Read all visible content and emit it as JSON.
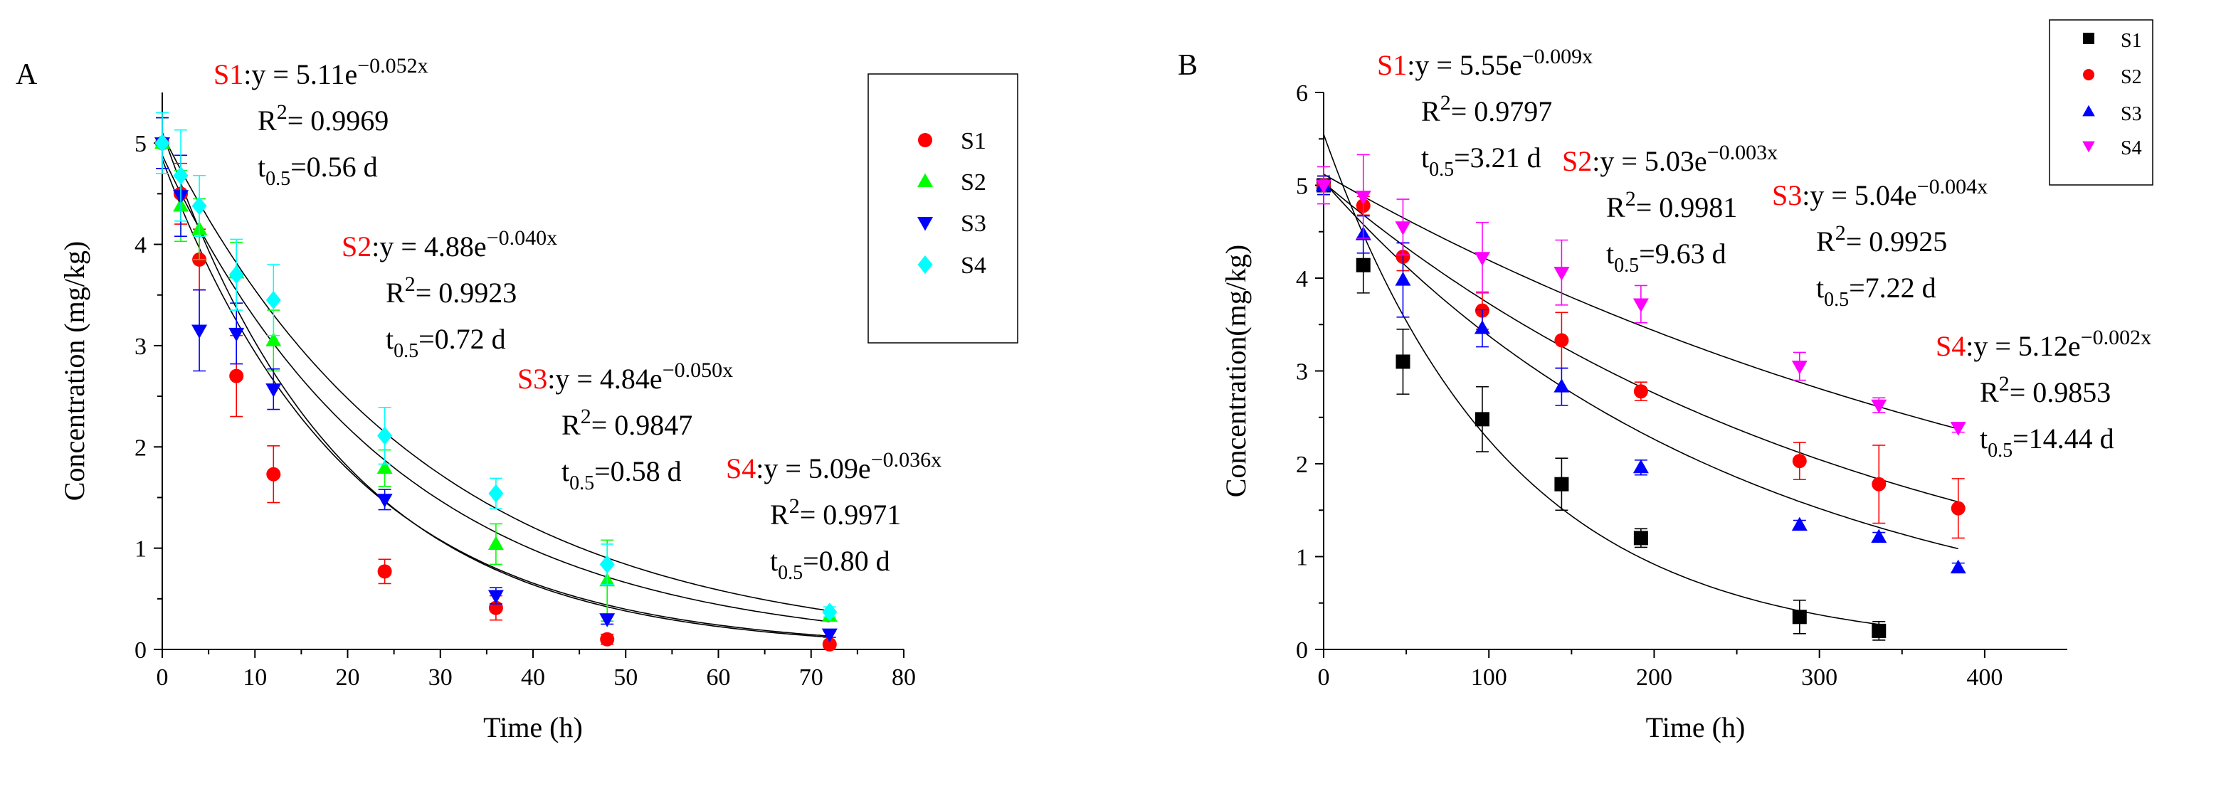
{
  "chart_data": [
    {
      "panel": "A",
      "type": "scatter",
      "xlabel": "Time (h)",
      "ylabel": "Concentration (mg/kg)",
      "xlim": [
        0,
        80
      ],
      "ylim": [
        0,
        5.5
      ],
      "xticks": [
        "0",
        "10",
        "20",
        "30",
        "40",
        "50",
        "60",
        "70",
        "80"
      ],
      "yticks": [
        "0",
        "1",
        "2",
        "3",
        "4",
        "5"
      ],
      "xtick_values": [
        0,
        10,
        20,
        30,
        40,
        50,
        60,
        70,
        80
      ],
      "ytick_values": [
        0,
        1,
        2,
        3,
        4,
        5
      ],
      "legend_position": "top-right",
      "series": [
        {
          "name": "S1",
          "color": "#ff0000",
          "marker": "circle",
          "x": [
            0,
            2,
            4,
            8,
            12,
            24,
            36,
            48,
            72
          ],
          "y": [
            5.0,
            4.5,
            3.85,
            2.7,
            1.73,
            0.77,
            0.41,
            0.1,
            0.05
          ],
          "err": [
            0.25,
            0.3,
            0.3,
            0.4,
            0.28,
            0.12,
            0.12,
            0.05,
            0.02
          ],
          "fit": {
            "a": 5.11,
            "k": 0.052
          },
          "equation": {
            "label": "S1",
            "prefix": ":y = 5.11e",
            "exponent": "−0.052x",
            "r2_prefix": "R",
            "r2_value": "= 0.9969",
            "t_prefix": "t",
            "t_sub": "0.5",
            "t_value": "=0.56 d"
          }
        },
        {
          "name": "S2",
          "color": "#00ff00",
          "marker": "triangle-up",
          "x": [
            0,
            2,
            4,
            8,
            12,
            24,
            36,
            48,
            72
          ],
          "y": [
            5.0,
            4.38,
            4.15,
            3.72,
            3.05,
            1.79,
            1.04,
            0.68,
            0.33
          ],
          "err": [
            0.25,
            0.35,
            0.3,
            0.3,
            0.3,
            0.18,
            0.2,
            0.4,
            0.05
          ],
          "fit": {
            "a": 4.88,
            "k": 0.04
          },
          "equation": {
            "label": "S2",
            "prefix": ":y = 4.88e",
            "exponent": "−0.040x",
            "r2_prefix": "R",
            "r2_value": "= 0.9923",
            "t_prefix": "t",
            "t_sub": "0.5",
            "t_value": "=0.72 d"
          }
        },
        {
          "name": "S3",
          "color": "#0000ff",
          "marker": "triangle-down",
          "x": [
            0,
            2,
            4,
            8,
            12,
            24,
            36,
            48,
            72
          ],
          "y": [
            5.0,
            4.48,
            3.15,
            3.12,
            2.57,
            1.48,
            0.53,
            0.3,
            0.15
          ],
          "err": [
            0.25,
            0.4,
            0.4,
            0.3,
            0.2,
            0.1,
            0.08,
            0.05,
            0.03
          ],
          "fit": {
            "a": 4.84,
            "k": 0.05
          },
          "equation": {
            "label": "S3",
            "prefix": ":y = 4.84e",
            "exponent": "−0.050x",
            "r2_prefix": "R",
            "r2_value": "= 0.9847",
            "t_prefix": "t",
            "t_sub": "0.5",
            "t_value": "=0.58 d"
          }
        },
        {
          "name": "S4",
          "color": "#00ffff",
          "marker": "diamond",
          "x": [
            0,
            2,
            4,
            8,
            12,
            24,
            36,
            48,
            72
          ],
          "y": [
            5.0,
            4.68,
            4.38,
            3.7,
            3.45,
            2.11,
            1.54,
            0.84,
            0.37
          ],
          "err": [
            0.3,
            0.45,
            0.3,
            0.35,
            0.35,
            0.28,
            0.15,
            0.2,
            0.05
          ],
          "fit": {
            "a": 5.09,
            "k": 0.036
          },
          "equation": {
            "label": "S4",
            "prefix": ":y = 5.09e",
            "exponent": "−0.036x",
            "r2_prefix": "R",
            "r2_value": "= 0.9971",
            "t_prefix": "t",
            "t_sub": "0.5",
            "t_value": "=0.80 d"
          }
        }
      ]
    },
    {
      "panel": "B",
      "type": "scatter",
      "xlabel": "Time (h)",
      "ylabel": "Concentration(mg/kg)",
      "xlim": [
        0,
        450
      ],
      "ylim": [
        0,
        6
      ],
      "xticks": [
        "0",
        "100",
        "200",
        "300",
        "400"
      ],
      "yticks": [
        "0",
        "1",
        "2",
        "3",
        "4",
        "5",
        "6"
      ],
      "xtick_values": [
        0,
        100,
        200,
        300,
        400
      ],
      "ytick_values": [
        0,
        1,
        2,
        3,
        4,
        5,
        6
      ],
      "legend_position": "top-right",
      "series": [
        {
          "name": "S1",
          "color": "#000000",
          "marker": "square",
          "x": [
            0,
            24,
            48,
            96,
            144,
            192,
            288,
            336
          ],
          "y": [
            5.0,
            4.14,
            3.1,
            2.48,
            1.78,
            1.2,
            0.35,
            0.2
          ],
          "err": [
            0.1,
            0.3,
            0.35,
            0.35,
            0.28,
            0.1,
            0.18,
            0.1
          ],
          "fit": {
            "a": 5.55,
            "k": 0.009
          },
          "equation": {
            "label": "S1",
            "prefix": ":y = 5.55e",
            "exponent": "−0.009x",
            "r2_prefix": "R",
            "r2_value": "= 0.9797",
            "t_prefix": "t",
            "t_sub": "0.5",
            "t_value": "=3.21 d"
          }
        },
        {
          "name": "S2",
          "color": "#ff0000",
          "marker": "circle",
          "x": [
            0,
            24,
            48,
            96,
            144,
            192,
            288,
            336,
            384
          ],
          "y": [
            5.0,
            4.78,
            4.23,
            3.65,
            3.33,
            2.78,
            2.03,
            1.78,
            1.52
          ],
          "err": [
            0.1,
            0.1,
            0.15,
            0.2,
            0.3,
            0.1,
            0.2,
            0.42,
            0.32
          ],
          "fit": {
            "a": 5.03,
            "k": 0.003
          },
          "equation": {
            "label": "S2",
            "prefix": ":y = 5.03e",
            "exponent": "−0.003x",
            "r2_prefix": "R",
            "r2_value": "= 0.9981",
            "t_prefix": "t",
            "t_sub": "0.5",
            "t_value": "=9.63 d"
          }
        },
        {
          "name": "S3",
          "color": "#0000ff",
          "marker": "triangle-up",
          "x": [
            0,
            24,
            48,
            96,
            144,
            192,
            288,
            336,
            384
          ],
          "y": [
            5.0,
            4.47,
            3.98,
            3.46,
            2.83,
            1.96,
            1.34,
            1.21,
            0.88
          ],
          "err": [
            0.1,
            0.2,
            0.4,
            0.2,
            0.2,
            0.08,
            0.05,
            0.05,
            0.05
          ],
          "fit": {
            "a": 5.04,
            "k": 0.004
          },
          "equation": {
            "label": "S3",
            "prefix": ":y = 5.04e",
            "exponent": "−0.004x",
            "r2_prefix": "R",
            "r2_value": "= 0.9925",
            "t_prefix": "t",
            "t_sub": "0.5",
            "t_value": "=7.22 d"
          }
        },
        {
          "name": "S4",
          "color": "#ff00ff",
          "marker": "triangle-down",
          "x": [
            0,
            24,
            48,
            96,
            144,
            192,
            288,
            336,
            384
          ],
          "y": [
            5.0,
            4.88,
            4.55,
            4.22,
            4.06,
            3.72,
            3.05,
            2.63,
            2.39
          ],
          "err": [
            0.2,
            0.45,
            0.3,
            0.38,
            0.35,
            0.2,
            0.15,
            0.08,
            0.05
          ],
          "fit": {
            "a": 5.12,
            "k": 0.002
          },
          "equation": {
            "label": "S4",
            "prefix": ":y = 5.12e",
            "exponent": "−0.002x",
            "r2_prefix": "R",
            "r2_value": "= 0.9853",
            "t_prefix": "t",
            "t_sub": "0.5",
            "t_value": "=14.44 d"
          }
        }
      ]
    }
  ]
}
